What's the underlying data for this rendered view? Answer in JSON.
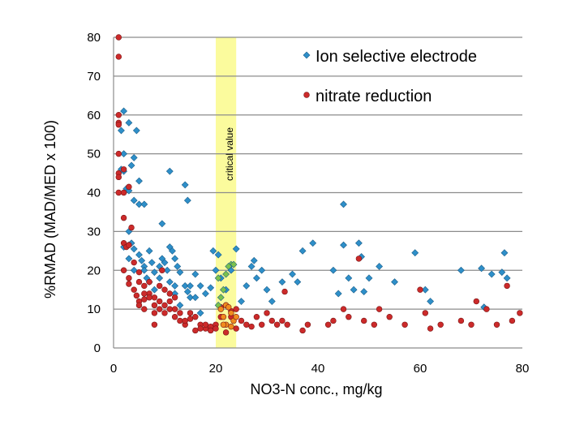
{
  "chart_data": {
    "type": "scatter",
    "xlabel": "NO3-N conc., mg/kg",
    "ylabel": "%RMAD (MAD/MED x 100)",
    "xlim": [
      0,
      80
    ],
    "ylim": [
      0,
      80
    ],
    "x_ticks": [
      0,
      20,
      40,
      60,
      80
    ],
    "y_ticks": [
      0,
      10,
      20,
      30,
      40,
      50,
      60,
      70,
      80
    ],
    "grid": "horizontal",
    "legend_position": "top-right",
    "annotation": {
      "label": "critical value",
      "x_range": [
        20,
        24
      ],
      "color": "#fafa8c"
    },
    "series": [
      {
        "name": "Ion selective electrode",
        "marker": "diamond",
        "color": "#2e8fc9",
        "points": [
          [
            2,
            61
          ],
          [
            1.5,
            56
          ],
          [
            4.5,
            56
          ],
          [
            3,
            58
          ],
          [
            2,
            50
          ],
          [
            3.5,
            47
          ],
          [
            4,
            49
          ],
          [
            1.5,
            46
          ],
          [
            2,
            45.5
          ],
          [
            5,
            43
          ],
          [
            2.5,
            41
          ],
          [
            3,
            40.5
          ],
          [
            4,
            38
          ],
          [
            5,
            37
          ],
          [
            6,
            37
          ],
          [
            11,
            45.5
          ],
          [
            14,
            42
          ],
          [
            14.5,
            38
          ],
          [
            9.5,
            32
          ],
          [
            3,
            26.5
          ],
          [
            2,
            26
          ],
          [
            3.5,
            27
          ],
          [
            4,
            25.5
          ],
          [
            3,
            23
          ],
          [
            5,
            24
          ],
          [
            5.5,
            22.5
          ],
          [
            4,
            20
          ],
          [
            6,
            21
          ],
          [
            6.5,
            18
          ],
          [
            7.5,
            22
          ],
          [
            8,
            19.5
          ],
          [
            9,
            21
          ],
          [
            9.5,
            23
          ],
          [
            10,
            22
          ],
          [
            10.5,
            20
          ],
          [
            11,
            26
          ],
          [
            11.5,
            25
          ],
          [
            12,
            23
          ],
          [
            12.5,
            21
          ],
          [
            13,
            19.5
          ],
          [
            14,
            16
          ],
          [
            14.5,
            14.5
          ],
          [
            15,
            13
          ],
          [
            16,
            19
          ],
          [
            17,
            16
          ],
          [
            18,
            14
          ],
          [
            19,
            15.5
          ],
          [
            19.5,
            25
          ],
          [
            20,
            20
          ],
          [
            20.5,
            24
          ],
          [
            21,
            18
          ],
          [
            22,
            15
          ],
          [
            23,
            20
          ],
          [
            24,
            25.5
          ],
          [
            25,
            12
          ],
          [
            26,
            16
          ],
          [
            27,
            21
          ],
          [
            27.5,
            22.5
          ],
          [
            28,
            18
          ],
          [
            29,
            20
          ],
          [
            30,
            15
          ],
          [
            31,
            12
          ],
          [
            33,
            17
          ],
          [
            35,
            19
          ],
          [
            36,
            17
          ],
          [
            37,
            25
          ],
          [
            39,
            27
          ],
          [
            43,
            20
          ],
          [
            44,
            14
          ],
          [
            45,
            37
          ],
          [
            45,
            26.5
          ],
          [
            46,
            18
          ],
          [
            47,
            15
          ],
          [
            48,
            27
          ],
          [
            48.5,
            23.5
          ],
          [
            49,
            14.5
          ],
          [
            50,
            18
          ],
          [
            52,
            21
          ],
          [
            55,
            17
          ],
          [
            59,
            24.5
          ],
          [
            61,
            15
          ],
          [
            62,
            12
          ],
          [
            68,
            20
          ],
          [
            72,
            20.5
          ],
          [
            74,
            19
          ],
          [
            76,
            19.5
          ],
          [
            76.5,
            24.5
          ],
          [
            77,
            18
          ],
          [
            72.5,
            10.5
          ],
          [
            8,
            15
          ],
          [
            9,
            18
          ],
          [
            6,
            20
          ],
          [
            7,
            17
          ],
          [
            12,
            14
          ],
          [
            13,
            11
          ],
          [
            15,
            16
          ],
          [
            17,
            9
          ],
          [
            16,
            13
          ],
          [
            11,
            17
          ],
          [
            3,
            30
          ],
          [
            7,
            25
          ],
          [
            12,
            16
          ]
        ]
      },
      {
        "name": "nitrate reduction",
        "marker": "circle",
        "color": "#cc2a2a",
        "points": [
          [
            1,
            80
          ],
          [
            1,
            75
          ],
          [
            1,
            60
          ],
          [
            1,
            58
          ],
          [
            1,
            57.5
          ],
          [
            1,
            50
          ],
          [
            1,
            45
          ],
          [
            1,
            44
          ],
          [
            1,
            40
          ],
          [
            2,
            46
          ],
          [
            2,
            40
          ],
          [
            3,
            41.5
          ],
          [
            2,
            33.5
          ],
          [
            3.5,
            31
          ],
          [
            2,
            27
          ],
          [
            2.5,
            26
          ],
          [
            3,
            26.5
          ],
          [
            2,
            20
          ],
          [
            3,
            18
          ],
          [
            3,
            16.5
          ],
          [
            4,
            15
          ],
          [
            4.5,
            13.5
          ],
          [
            5,
            12
          ],
          [
            5,
            11
          ],
          [
            6,
            12.5
          ],
          [
            6,
            16
          ],
          [
            5,
            19.5
          ],
          [
            7,
            17
          ],
          [
            7,
            14
          ],
          [
            8,
            13
          ],
          [
            8,
            11
          ],
          [
            8,
            9
          ],
          [
            9,
            10
          ],
          [
            9,
            12
          ],
          [
            10,
            11
          ],
          [
            10,
            9
          ],
          [
            10,
            15
          ],
          [
            11,
            14
          ],
          [
            11,
            12
          ],
          [
            11,
            10
          ],
          [
            12,
            10
          ],
          [
            12,
            8
          ],
          [
            13,
            9
          ],
          [
            13,
            7
          ],
          [
            14,
            6
          ],
          [
            15,
            7.5
          ],
          [
            16,
            4.5
          ],
          [
            16,
            8
          ],
          [
            17,
            6
          ],
          [
            18,
            5
          ],
          [
            18,
            6
          ],
          [
            19,
            5.5
          ],
          [
            19,
            4.5
          ],
          [
            20,
            6
          ],
          [
            20,
            5
          ],
          [
            21,
            10.5
          ],
          [
            22,
            11
          ],
          [
            23,
            9.5
          ],
          [
            23,
            8
          ],
          [
            24,
            10
          ],
          [
            25,
            7
          ],
          [
            26,
            6
          ],
          [
            27,
            5.5
          ],
          [
            28,
            8
          ],
          [
            29,
            6
          ],
          [
            30,
            9
          ],
          [
            31,
            7
          ],
          [
            32,
            6
          ],
          [
            33,
            7
          ],
          [
            34,
            6
          ],
          [
            33.5,
            14.5
          ],
          [
            37,
            4.5
          ],
          [
            38,
            6
          ],
          [
            42,
            6
          ],
          [
            43,
            7
          ],
          [
            45,
            10
          ],
          [
            46,
            8
          ],
          [
            48,
            23
          ],
          [
            49,
            7
          ],
          [
            51,
            6
          ],
          [
            52,
            10
          ],
          [
            54,
            8
          ],
          [
            57,
            6
          ],
          [
            60,
            15
          ],
          [
            61,
            9
          ],
          [
            62,
            5
          ],
          [
            64,
            6
          ],
          [
            68,
            7
          ],
          [
            70,
            6
          ],
          [
            71,
            12
          ],
          [
            73,
            10
          ],
          [
            75,
            6
          ],
          [
            77,
            16
          ],
          [
            78,
            7
          ],
          [
            79.5,
            9
          ],
          [
            4,
            22
          ],
          [
            5,
            17
          ],
          [
            6,
            14
          ],
          [
            7,
            13
          ],
          [
            9,
            16
          ],
          [
            9.5,
            20
          ],
          [
            12,
            13
          ],
          [
            14,
            7
          ],
          [
            15,
            9
          ],
          [
            17,
            5
          ],
          [
            22,
            4
          ],
          [
            24,
            5
          ],
          [
            8,
            6
          ],
          [
            6,
            10
          ],
          [
            21,
            8
          ]
        ]
      }
    ],
    "highlight_points": [
      {
        "name": "green diamonds in critical band",
        "color": "#7cc24a",
        "points": [
          [
            20.5,
            18
          ],
          [
            21.5,
            15
          ],
          [
            22,
            19
          ],
          [
            23,
            21.5
          ],
          [
            20.5,
            11
          ],
          [
            21,
            13
          ],
          [
            22.5,
            21
          ],
          [
            23.5,
            21.5
          ]
        ]
      },
      {
        "name": "orange circles in critical band",
        "color": "#f08c1e",
        "points": [
          [
            21,
            10
          ],
          [
            21.5,
            8
          ],
          [
            22,
            6
          ],
          [
            22,
            11
          ],
          [
            23,
            9
          ],
          [
            23.5,
            7
          ],
          [
            21.5,
            6
          ],
          [
            23,
            5.5
          ],
          [
            22.5,
            10.5
          ],
          [
            24,
            8
          ]
        ]
      }
    ]
  }
}
